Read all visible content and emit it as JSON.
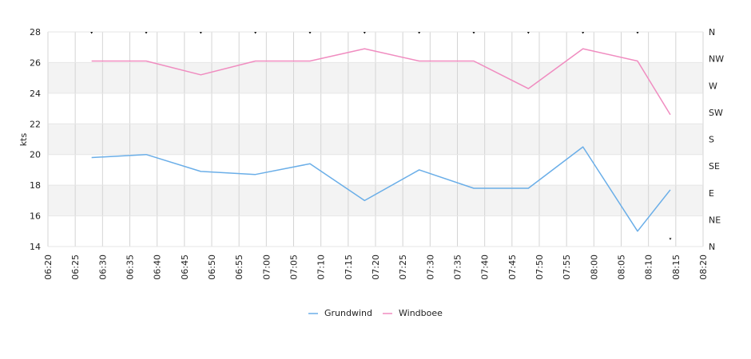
{
  "chart_data": {
    "type": "line",
    "ylabel": "kts",
    "ylim": [
      14,
      28
    ],
    "yticks": [
      14,
      16,
      18,
      20,
      22,
      24,
      26,
      28
    ],
    "xlim": [
      "06:20",
      "08:20"
    ],
    "xticks": [
      "06:20",
      "06:25",
      "06:30",
      "06:35",
      "06:40",
      "06:45",
      "06:50",
      "06:55",
      "07:00",
      "07:05",
      "07:10",
      "07:15",
      "07:20",
      "07:25",
      "07:30",
      "07:35",
      "07:40",
      "07:45",
      "07:50",
      "07:55",
      "08:00",
      "08:05",
      "08:10",
      "08:15",
      "08:20"
    ],
    "right_axis_labels": [
      "N",
      "NE",
      "E",
      "SE",
      "S",
      "SW",
      "W",
      "NW",
      "N"
    ],
    "grid": true,
    "legend_position": "bottom",
    "series": [
      {
        "name": "Grundwind",
        "color": "#6aaee8",
        "x": [
          "06:28",
          "06:38",
          "06:48",
          "06:58",
          "07:08",
          "07:18",
          "07:28",
          "07:38",
          "07:48",
          "07:58",
          "08:08",
          "08:14"
        ],
        "values": [
          19.8,
          20.0,
          18.9,
          18.7,
          19.4,
          17.0,
          19.0,
          17.8,
          17.8,
          20.5,
          15.0,
          17.7
        ]
      },
      {
        "name": "Windboee",
        "color": "#f08cc0",
        "x": [
          "06:28",
          "06:38",
          "06:48",
          "06:58",
          "07:08",
          "07:18",
          "07:28",
          "07:38",
          "07:48",
          "07:58",
          "08:08",
          "08:14"
        ],
        "values": [
          26.1,
          26.1,
          25.2,
          26.1,
          26.1,
          26.9,
          26.1,
          26.1,
          24.3,
          26.9,
          26.1,
          22.6
        ]
      }
    ],
    "direction_markers": {
      "x": [
        "06:28",
        "06:38",
        "06:48",
        "06:58",
        "07:08",
        "07:18",
        "07:28",
        "07:38",
        "07:48",
        "07:58",
        "08:08",
        "08:14"
      ],
      "direction": [
        "N",
        "N",
        "N",
        "N",
        "N",
        "N",
        "N",
        "N",
        "N",
        "N",
        "N",
        "N"
      ]
    }
  }
}
